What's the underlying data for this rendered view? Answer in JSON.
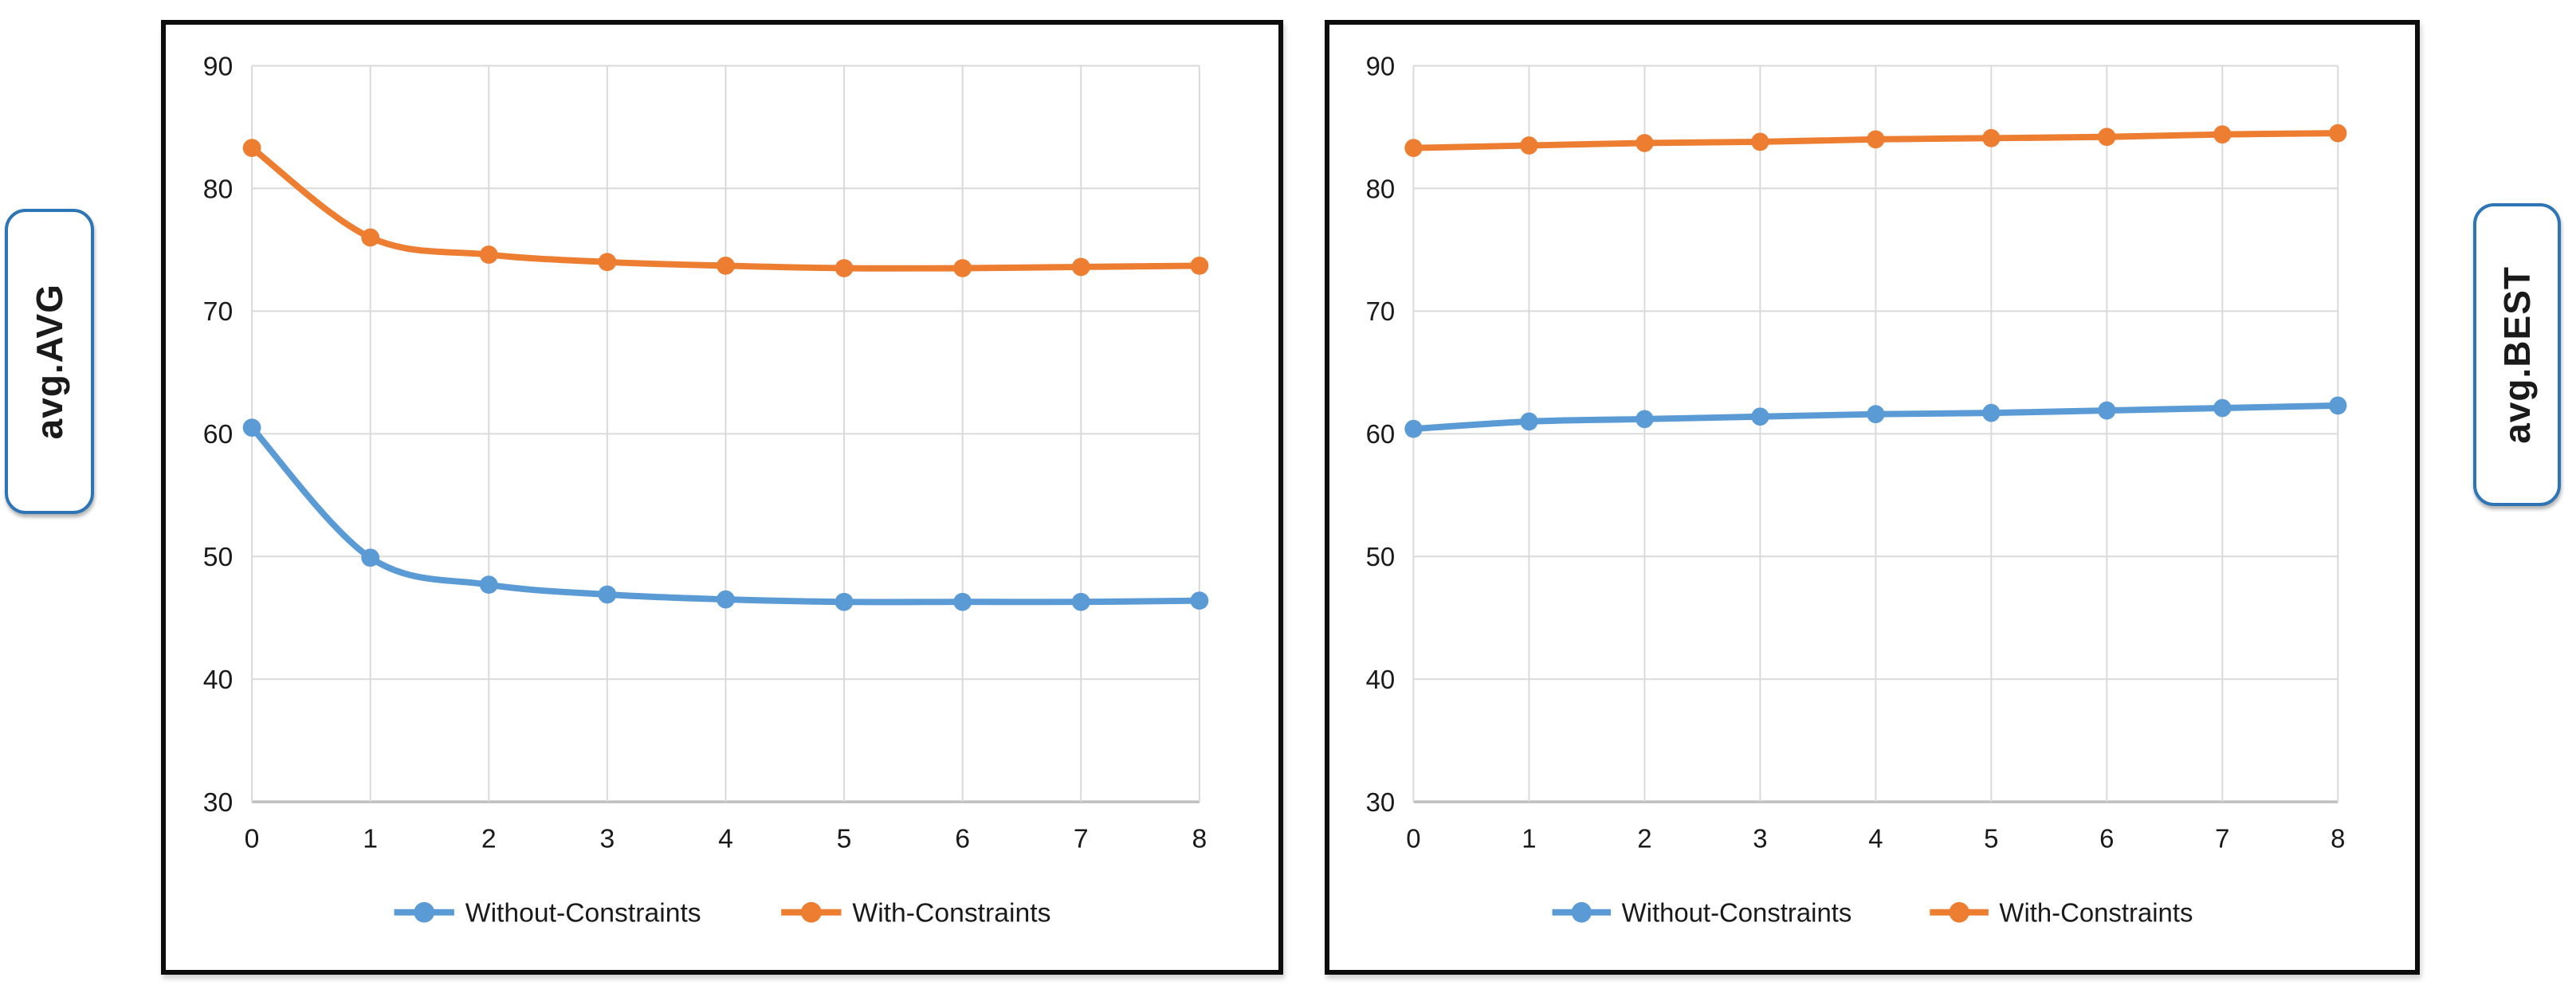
{
  "colors": {
    "series_blue": "#5B9BD5",
    "series_orange": "#ED7D31",
    "gridline": "#D9D9D9",
    "axis_baseline": "#BFBFBF",
    "tick_text": "#1a1a1a",
    "panel_border": "#0d0d0d",
    "label_box_border": "#2E75B6"
  },
  "left_panel_label": "avg.AVG",
  "right_panel_label": "avg.BEST",
  "chart_data": [
    {
      "type": "line",
      "title": "avg.AVG",
      "categories": [
        0,
        1,
        2,
        3,
        4,
        5,
        6,
        7,
        8
      ],
      "xlabel": "",
      "ylabel": "avg.AVG",
      "ylim": [
        30,
        90
      ],
      "ytick_step": 10,
      "grid": true,
      "legend_position": "bottom",
      "series": [
        {
          "name": "Without-Constraints",
          "color": "#5B9BD5",
          "values": [
            60.5,
            49.9,
            47.7,
            46.9,
            46.5,
            46.3,
            46.3,
            46.3,
            46.4
          ]
        },
        {
          "name": "With-Constraints",
          "color": "#ED7D31",
          "values": [
            83.3,
            76.0,
            74.6,
            74.0,
            73.7,
            73.5,
            73.5,
            73.6,
            73.7
          ]
        }
      ]
    },
    {
      "type": "line",
      "title": "avg.BEST",
      "categories": [
        0,
        1,
        2,
        3,
        4,
        5,
        6,
        7,
        8
      ],
      "xlabel": "",
      "ylabel": "avg.BEST",
      "ylim": [
        30,
        90
      ],
      "ytick_step": 10,
      "grid": true,
      "legend_position": "bottom",
      "series": [
        {
          "name": "Without-Constraints",
          "color": "#5B9BD5",
          "values": [
            60.4,
            61.0,
            61.2,
            61.4,
            61.6,
            61.7,
            61.9,
            62.1,
            62.3
          ]
        },
        {
          "name": "With-Constraints",
          "color": "#ED7D31",
          "values": [
            83.3,
            83.5,
            83.7,
            83.8,
            84.0,
            84.1,
            84.2,
            84.4,
            84.5
          ]
        }
      ]
    }
  ]
}
